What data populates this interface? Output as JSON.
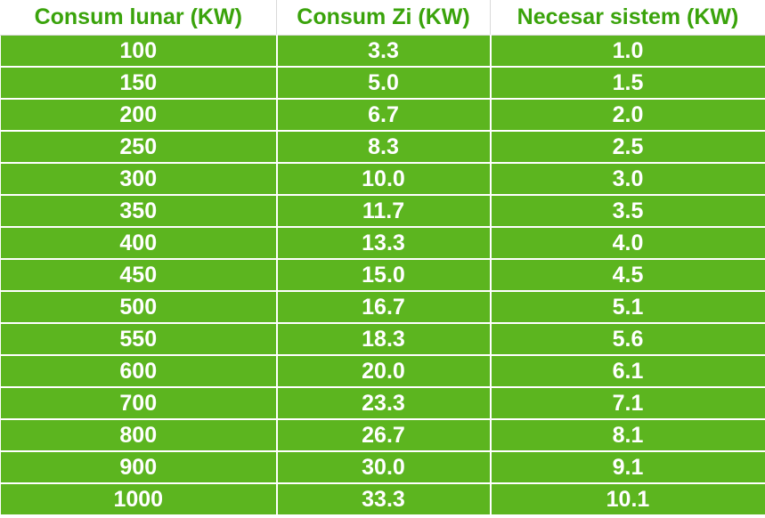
{
  "table": {
    "header": [
      "Consum lunar (KW)",
      "Consum Zi (KW)",
      "Necesar sistem (KW)"
    ],
    "rows": [
      [
        "100",
        "3.3",
        "1.0"
      ],
      [
        "150",
        "5.0",
        "1.5"
      ],
      [
        "200",
        "6.7",
        "2.0"
      ],
      [
        "250",
        "8.3",
        "2.5"
      ],
      [
        "300",
        "10.0",
        "3.0"
      ],
      [
        "350",
        "11.7",
        "3.5"
      ],
      [
        "400",
        "13.3",
        "4.0"
      ],
      [
        "450",
        "15.0",
        "4.5"
      ],
      [
        "500",
        "16.7",
        "5.1"
      ],
      [
        "550",
        "18.3",
        "5.6"
      ],
      [
        "600",
        "20.0",
        "6.1"
      ],
      [
        "700",
        "23.3",
        "7.1"
      ],
      [
        "800",
        "26.7",
        "8.1"
      ],
      [
        "900",
        "30.0",
        "9.1"
      ],
      [
        "1000",
        "33.3",
        "10.1"
      ]
    ]
  }
}
